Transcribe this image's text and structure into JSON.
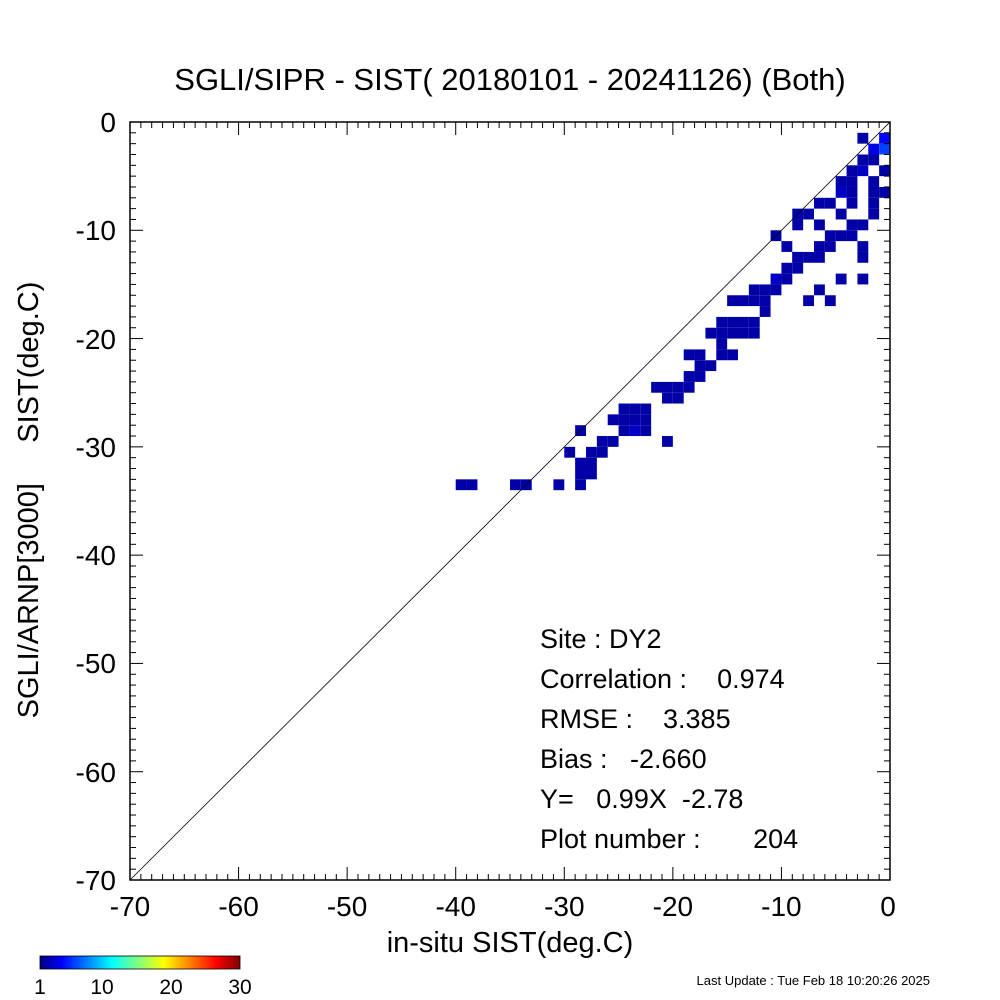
{
  "chart_data": {
    "type": "heatmap",
    "title": "SGLI/SIPR - SIST( 20180101 - 20241126) (Both)",
    "xlabel": "in-situ SIST(deg.C)",
    "ylabel": "SGLI/ARNP[3000]     SIST(deg.C)",
    "xlim": [
      -70,
      0
    ],
    "ylim": [
      -70,
      0
    ],
    "x_ticks": [
      "-70",
      "-60",
      "-50",
      "-40",
      "-30",
      "-20",
      "-10",
      "0"
    ],
    "y_ticks": [
      "0",
      "-10",
      "-20",
      "-30",
      "-40",
      "-50",
      "-60",
      "-70"
    ],
    "reference_line": "Y = X",
    "bin_size": 1,
    "colorbar": {
      "min": 1,
      "max": 30,
      "ticks": [
        "1",
        "10",
        "20",
        "30"
      ],
      "colormap": "rainbow"
    },
    "stats": {
      "site": "Site : DY2",
      "correlation": "Correlation :    0.974",
      "rmse": "RMSE :    3.385",
      "bias": "Bias :   -2.660",
      "regression": "Y=   0.99X  -2.78",
      "plot_number": "Plot number :       204"
    },
    "cells": [
      [
        -39,
        -33,
        1
      ],
      [
        -38,
        -33,
        1
      ],
      [
        -34,
        -33,
        1
      ],
      [
        -33,
        -33,
        1
      ],
      [
        -30,
        -33,
        1
      ],
      [
        -29,
        -30,
        1
      ],
      [
        -28,
        -33,
        1
      ],
      [
        -28,
        -32,
        1
      ],
      [
        -28,
        -31,
        1
      ],
      [
        -27,
        -32,
        1
      ],
      [
        -27,
        -31,
        1
      ],
      [
        -28,
        -28,
        1
      ],
      [
        -27,
        -30,
        1
      ],
      [
        -26,
        -30,
        1
      ],
      [
        -26,
        -29,
        1
      ],
      [
        -25,
        -29,
        1
      ],
      [
        -25,
        -27,
        1
      ],
      [
        -24,
        -27,
        1
      ],
      [
        -24,
        -28,
        1
      ],
      [
        -23,
        -27,
        1
      ],
      [
        -23,
        -28,
        2
      ],
      [
        -22,
        -27,
        1
      ],
      [
        -22,
        -28,
        1
      ],
      [
        -24,
        -26,
        1
      ],
      [
        -23,
        -26,
        1
      ],
      [
        -22,
        -26,
        1
      ],
      [
        -20,
        -29,
        1
      ],
      [
        -21,
        -24,
        1
      ],
      [
        -20,
        -24,
        1
      ],
      [
        -20,
        -25,
        1
      ],
      [
        -19,
        -24,
        1
      ],
      [
        -19,
        -25,
        1
      ],
      [
        -18,
        -24,
        1
      ],
      [
        -18,
        -23,
        1
      ],
      [
        -17,
        -23,
        1
      ],
      [
        -17,
        -22,
        1
      ],
      [
        -16,
        -22,
        1
      ],
      [
        -18,
        -21,
        1
      ],
      [
        -17,
        -21,
        1
      ],
      [
        -15,
        -21,
        1
      ],
      [
        -14,
        -21,
        1
      ],
      [
        -16,
        -19,
        1
      ],
      [
        -15,
        -19,
        1
      ],
      [
        -15,
        -20,
        1
      ],
      [
        -14,
        -19,
        1
      ],
      [
        -13,
        -19,
        1
      ],
      [
        -12,
        -19,
        1
      ],
      [
        -15,
        -18,
        1
      ],
      [
        -14,
        -18,
        1
      ],
      [
        -13,
        -18,
        1
      ],
      [
        -12,
        -18,
        1
      ],
      [
        -11,
        -17,
        1
      ],
      [
        -14,
        -16,
        1
      ],
      [
        -13,
        -16,
        1
      ],
      [
        -12,
        -16,
        1
      ],
      [
        -11,
        -16,
        1
      ],
      [
        -10,
        -15,
        1
      ],
      [
        -12,
        -15,
        1
      ],
      [
        -11,
        -15,
        1
      ],
      [
        -10,
        -14,
        2
      ],
      [
        -9,
        -14,
        1
      ],
      [
        -9,
        -13,
        1
      ],
      [
        -8,
        -13,
        1
      ],
      [
        -7,
        -12,
        1
      ],
      [
        -6,
        -12,
        1
      ],
      [
        -6,
        -11,
        1
      ],
      [
        -5,
        -11,
        1
      ],
      [
        -5,
        -10,
        1
      ],
      [
        -4,
        -10,
        1
      ],
      [
        -8,
        -12,
        1
      ],
      [
        -4,
        -14,
        1
      ],
      [
        -6,
        -15,
        1
      ],
      [
        -7,
        -16,
        1
      ],
      [
        -5,
        -16,
        1
      ],
      [
        -3,
        -7,
        1
      ],
      [
        -4,
        -8,
        1
      ],
      [
        -3,
        -9,
        1
      ],
      [
        -2,
        -9,
        1
      ],
      [
        -3,
        -10,
        1
      ],
      [
        -4,
        -6,
        2
      ],
      [
        -3,
        -6,
        1
      ],
      [
        -4,
        -5,
        1
      ],
      [
        -3,
        -5,
        1
      ],
      [
        -3,
        -4,
        1
      ],
      [
        -2,
        -4,
        2
      ],
      [
        -2,
        -3,
        1
      ],
      [
        -1,
        -3,
        1
      ],
      [
        -1,
        -2,
        3
      ],
      [
        0,
        -2,
        6
      ],
      [
        0,
        -1,
        4
      ],
      [
        -2,
        -1,
        1
      ],
      [
        -1,
        -5,
        1
      ],
      [
        -1,
        -7,
        1
      ],
      [
        -1,
        -8,
        1
      ],
      [
        -2,
        -11,
        1
      ],
      [
        -2,
        -12,
        1
      ],
      [
        -2,
        -14,
        1
      ],
      [
        -5,
        -7,
        1
      ],
      [
        -6,
        -7,
        1
      ],
      [
        -7,
        -8,
        1
      ],
      [
        -8,
        -8,
        1
      ],
      [
        -8,
        -9,
        1
      ],
      [
        -8,
        -12,
        1
      ],
      [
        -9,
        -11,
        1
      ],
      [
        -10,
        -10,
        1
      ],
      [
        -6,
        -9,
        1
      ],
      [
        -1,
        -6,
        1
      ],
      [
        0,
        -4,
        1
      ],
      [
        0,
        -6,
        1
      ]
    ]
  },
  "footer": {
    "last_update": "Last Update : Tue Feb 18 10:20:26 2025"
  }
}
